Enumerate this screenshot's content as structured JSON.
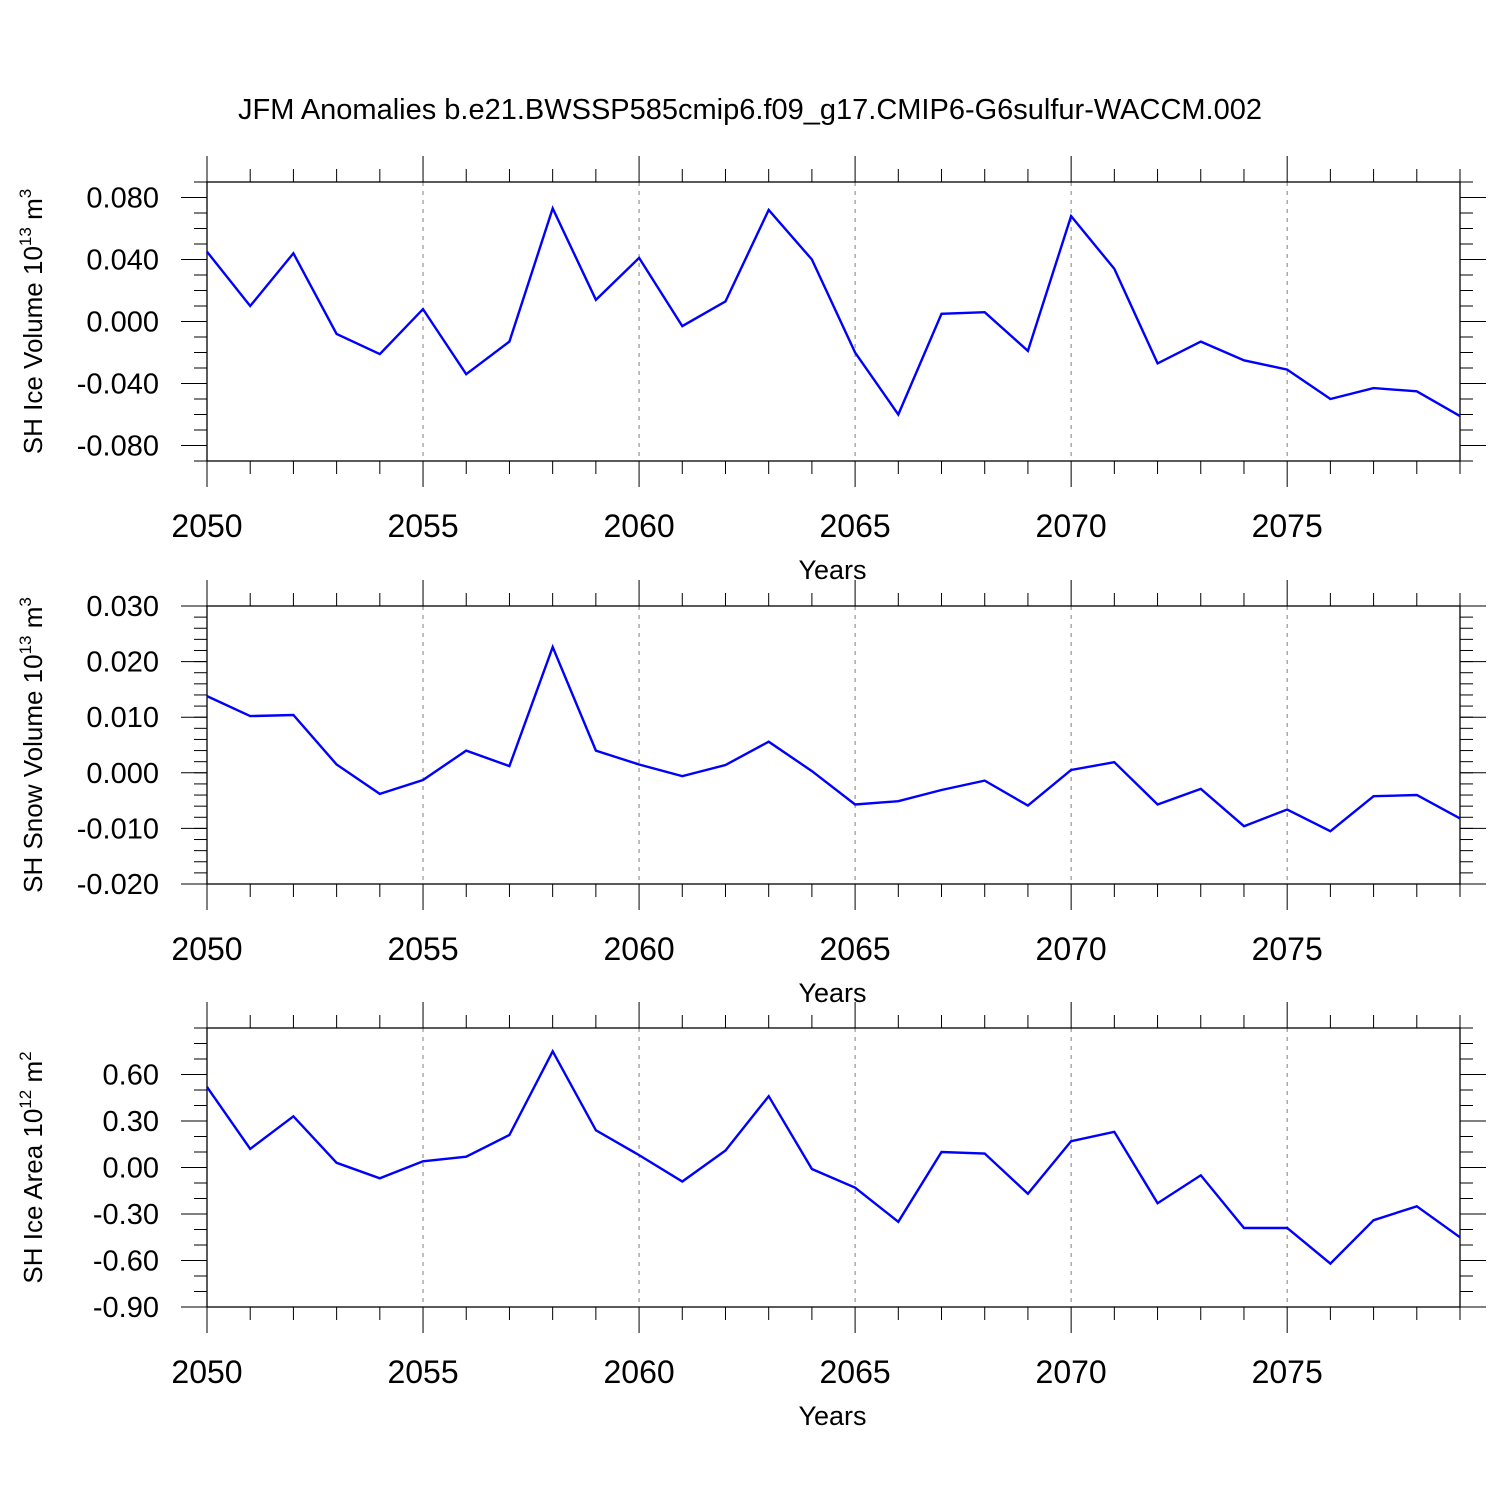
{
  "title": "JFM Anomalies b.e21.BWSSP585cmip6.f09_g17.CMIP6-G6sulfur-WACCM.002",
  "colors": {
    "series": "#0000ff",
    "axis": "#000000",
    "grid": "#808080"
  },
  "chart_data": [
    {
      "type": "line",
      "title": "JFM Anomalies b.e21.BWSSP585cmip6.f09_g17.CMIP6-G6sulfur-WACCM.002",
      "xlabel": "Years",
      "ylabel": {
        "text": "SH Ice Volume 10",
        "sup": "13",
        "unit": " m",
        "unit_sup": "3"
      },
      "xlim": [
        2050,
        2079
      ],
      "ylim": [
        -0.09,
        0.09
      ],
      "x_ticks": [
        "2050",
        "2055",
        "2060",
        "2065",
        "2070",
        "2075"
      ],
      "y_ticks": [
        "0.080",
        "0.040",
        "0.000",
        "-0.040",
        "-0.080"
      ],
      "y_tick_values": [
        0.08,
        0.04,
        0.0,
        -0.04,
        -0.08
      ],
      "y_minor_step": 0.01,
      "grid": "vertical dashed at major x ticks",
      "x": [
        2050,
        2051,
        2052,
        2053,
        2054,
        2055,
        2056,
        2057,
        2058,
        2059,
        2060,
        2061,
        2062,
        2063,
        2064,
        2065,
        2066,
        2067,
        2068,
        2069,
        2070,
        2071,
        2072,
        2073,
        2074,
        2075,
        2076,
        2077,
        2078,
        2079
      ],
      "values": [
        0.045,
        0.01,
        0.044,
        -0.008,
        -0.021,
        0.008,
        -0.034,
        -0.013,
        0.073,
        0.014,
        0.041,
        -0.003,
        0.013,
        0.072,
        0.04,
        -0.02,
        -0.06,
        0.005,
        0.006,
        -0.019,
        0.068,
        0.034,
        -0.027,
        -0.013,
        -0.025,
        -0.031,
        -0.05,
        -0.043,
        -0.045,
        -0.061
      ]
    },
    {
      "type": "line",
      "xlabel": "Years",
      "ylabel": {
        "text": "SH Snow Volume 10",
        "sup": "13",
        "unit": " m",
        "unit_sup": "3"
      },
      "xlim": [
        2050,
        2079
      ],
      "ylim": [
        -0.02,
        0.03
      ],
      "x_ticks": [
        "2050",
        "2055",
        "2060",
        "2065",
        "2070",
        "2075"
      ],
      "y_ticks": [
        "0.030",
        "0.020",
        "0.010",
        "0.000",
        "-0.010",
        "-0.020"
      ],
      "y_tick_values": [
        0.03,
        0.02,
        0.01,
        0.0,
        -0.01,
        -0.02
      ],
      "y_minor_step": 0.002,
      "grid": "vertical dashed at major x ticks",
      "x": [
        2050,
        2051,
        2052,
        2053,
        2054,
        2055,
        2056,
        2057,
        2058,
        2059,
        2060,
        2061,
        2062,
        2063,
        2064,
        2065,
        2066,
        2067,
        2068,
        2069,
        2070,
        2071,
        2072,
        2073,
        2074,
        2075,
        2076,
        2077,
        2078,
        2079
      ],
      "values": [
        0.0138,
        0.0102,
        0.0104,
        0.0015,
        -0.0038,
        -0.0013,
        0.004,
        0.0012,
        0.0226,
        0.004,
        0.0015,
        -0.0006,
        0.0014,
        0.0056,
        0.0003,
        -0.0057,
        -0.0051,
        -0.0031,
        -0.0014,
        -0.0059,
        0.0005,
        0.0019,
        -0.0057,
        -0.0029,
        -0.0096,
        -0.0066,
        -0.0105,
        -0.0042,
        -0.004,
        -0.0082
      ]
    },
    {
      "type": "line",
      "xlabel": "Years",
      "ylabel": {
        "text": "SH Ice Area 10",
        "sup": "12",
        "unit": " m",
        "unit_sup": "2"
      },
      "xlim": [
        2050,
        2079
      ],
      "ylim": [
        -0.9,
        0.9
      ],
      "x_ticks": [
        "2050",
        "2055",
        "2060",
        "2065",
        "2070",
        "2075"
      ],
      "y_ticks": [
        "0.60",
        "0.30",
        "0.00",
        "-0.30",
        "-0.60",
        "-0.90"
      ],
      "y_tick_values": [
        0.6,
        0.3,
        0.0,
        -0.3,
        -0.6,
        -0.9
      ],
      "y_minor_step": 0.1,
      "grid": "vertical dashed at major x ticks",
      "x": [
        2050,
        2051,
        2052,
        2053,
        2054,
        2055,
        2056,
        2057,
        2058,
        2059,
        2060,
        2061,
        2062,
        2063,
        2064,
        2065,
        2066,
        2067,
        2068,
        2069,
        2070,
        2071,
        2072,
        2073,
        2074,
        2075,
        2076,
        2077,
        2078,
        2079
      ],
      "values": [
        0.52,
        0.12,
        0.33,
        0.03,
        -0.07,
        0.04,
        0.07,
        0.21,
        0.75,
        0.24,
        0.08,
        -0.09,
        0.11,
        0.46,
        -0.01,
        -0.13,
        -0.35,
        0.1,
        0.09,
        -0.17,
        0.17,
        0.23,
        -0.23,
        -0.05,
        -0.39,
        -0.39,
        -0.62,
        -0.34,
        -0.25,
        -0.45
      ]
    }
  ]
}
